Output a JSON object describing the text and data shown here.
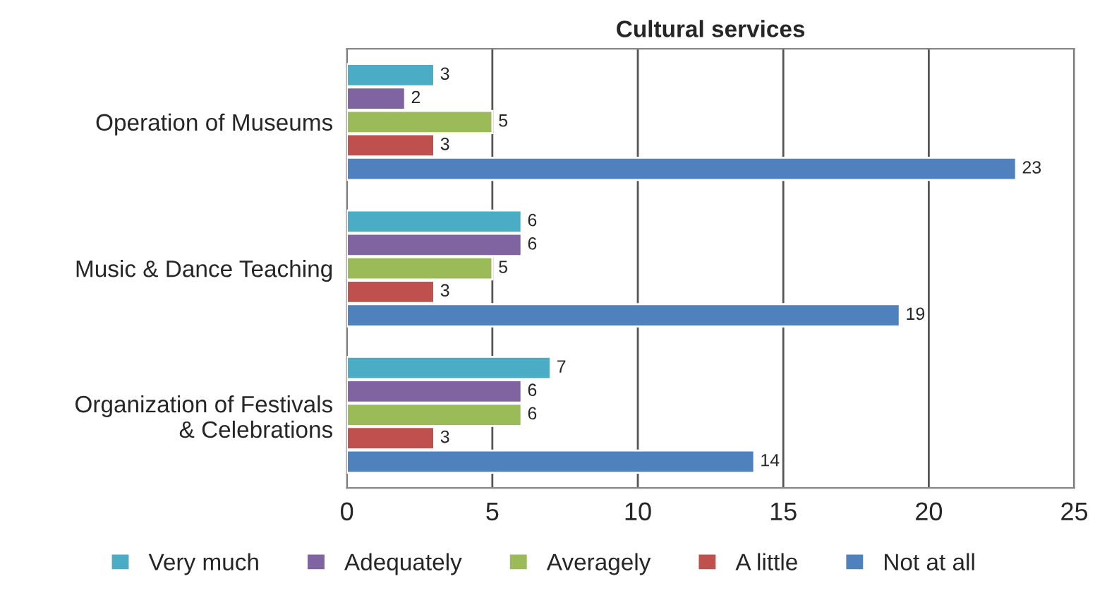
{
  "chart_data": {
    "type": "bar",
    "orientation": "horizontal",
    "title": "Cultural services",
    "categories": [
      "Operation of Museums",
      "Music & Dance Teaching",
      "Organization of Festivals\n& Celebrations"
    ],
    "series": [
      {
        "name": "Very much",
        "color": "#4bacc6",
        "values": [
          3,
          6,
          7
        ]
      },
      {
        "name": "Adequately",
        "color": "#8064a2",
        "values": [
          2,
          6,
          6
        ]
      },
      {
        "name": "Averagely",
        "color": "#9bbb59",
        "values": [
          5,
          5,
          6
        ]
      },
      {
        "name": "A little",
        "color": "#c0504d",
        "values": [
          3,
          3,
          3
        ]
      },
      {
        "name": "Not at all",
        "color": "#4f81bd",
        "values": [
          23,
          19,
          14
        ]
      }
    ],
    "xlim": [
      0,
      25
    ],
    "xticks": [
      0,
      5,
      10,
      15,
      20,
      25
    ],
    "grid": "x",
    "legend": "bottom",
    "data_labels": true
  }
}
